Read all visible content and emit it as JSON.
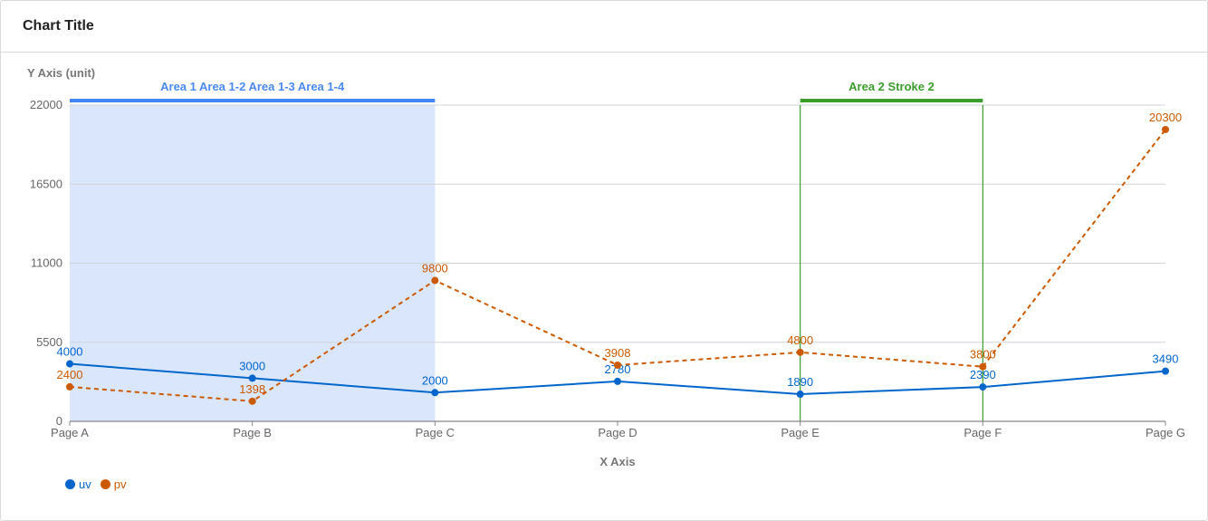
{
  "card": {
    "title": "Chart Title"
  },
  "chart_data": {
    "type": "line",
    "categories": [
      "Page A",
      "Page B",
      "Page C",
      "Page D",
      "Page E",
      "Page F",
      "Page G"
    ],
    "series": [
      {
        "name": "uv",
        "values": [
          4000,
          3000,
          2000,
          2780,
          1890,
          2390,
          3490
        ],
        "color": "#0066cc",
        "style": "solid"
      },
      {
        "name": "pv",
        "values": [
          2400,
          1398,
          9800,
          3908,
          4800,
          3800,
          20300
        ],
        "color": "#cc5a00",
        "style": "dashed"
      }
    ],
    "ylabel": "Y Axis (unit)",
    "xlabel": "X Axis",
    "ylim": [
      0,
      22000
    ],
    "yticks": [
      0,
      5500,
      11000,
      16500,
      22000
    ],
    "grid": true,
    "legend_position": "bottom-left",
    "annotations": [
      {
        "label": "Area 1 Area 1-2 Area 1-3 Area 1-4",
        "from": "Page A",
        "to": "Page C",
        "type": "area",
        "fill": "#dae6fb",
        "stroke": "#4285f4",
        "label_color": "#4a8af4"
      },
      {
        "label": "Area 2 Stroke 2",
        "from": "Page E",
        "to": "Page F",
        "type": "bracket",
        "stroke": "#3a9c2b",
        "label_color": "#3a9c2b"
      }
    ]
  }
}
